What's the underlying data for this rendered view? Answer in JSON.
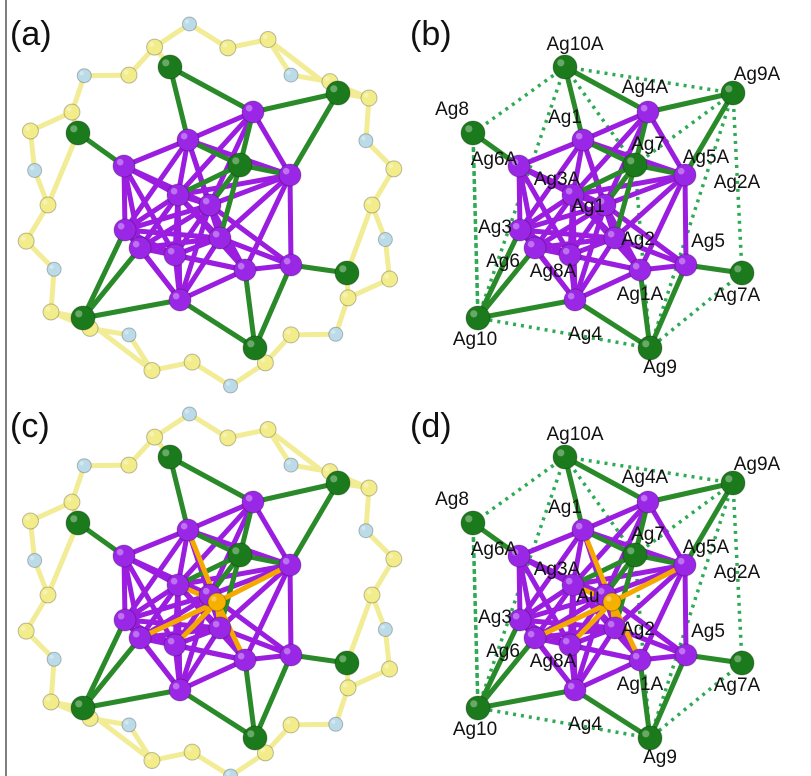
{
  "panels": [
    {
      "label": "(a)"
    },
    {
      "label": "(b)",
      "atom_labels": [
        "Ag10A",
        "Ag9A",
        "Ag8",
        "Ag4A",
        "Ag1",
        "Ag7",
        "Ag6A",
        "Ag5A",
        "Ag3A",
        "Ag2A",
        "Ag1",
        "Ag3",
        "Ag2",
        "Ag5",
        "Ag6",
        "Ag8A",
        "Ag1A",
        "Ag7A",
        "Ag10",
        "Ag4",
        "Ag9"
      ]
    },
    {
      "label": "(c)"
    },
    {
      "label": "(d)",
      "atom_labels": [
        "Ag10A",
        "Ag9A",
        "Ag8",
        "Ag4A",
        "Ag1",
        "Ag7",
        "Ag6A",
        "Ag5A",
        "Ag3A",
        "Ag2A",
        "Au",
        "Ag3",
        "Ag2",
        "Ag5",
        "Ag6",
        "Ag8A",
        "Ag1A",
        "Ag7A",
        "Ag10",
        "Ag4",
        "Ag9"
      ]
    }
  ]
}
